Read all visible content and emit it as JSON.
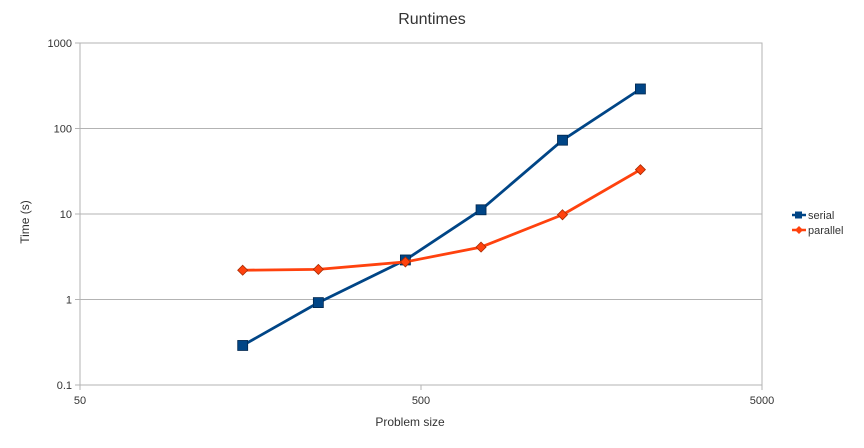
{
  "chart_data": {
    "type": "line",
    "title": "Runtimes",
    "xlabel": "Problem size",
    "ylabel": "Time (s)",
    "xscale": "log",
    "yscale": "log",
    "xlim": [
      50,
      5000
    ],
    "ylim": [
      0.1,
      1000
    ],
    "xticks": [
      50,
      500,
      5000
    ],
    "xtick_labels": [
      "50",
      "500",
      "5000"
    ],
    "yticks": [
      0.1,
      1,
      10,
      100,
      1000
    ],
    "ytick_labels": [
      "0.1",
      "1",
      "10",
      "100",
      "1000"
    ],
    "grid": "horizontal",
    "legend_position": "right",
    "x": [
      150,
      250,
      450,
      750,
      1300,
      2200
    ],
    "series": [
      {
        "name": "serial",
        "values": [
          0.29,
          0.92,
          2.9,
          11.2,
          73,
          290
        ],
        "color": "#004586",
        "marker": "square"
      },
      {
        "name": "parallel",
        "values": [
          2.2,
          2.25,
          2.75,
          4.1,
          9.8,
          33
        ],
        "color": "#ff420e",
        "marker": "diamond"
      }
    ]
  }
}
